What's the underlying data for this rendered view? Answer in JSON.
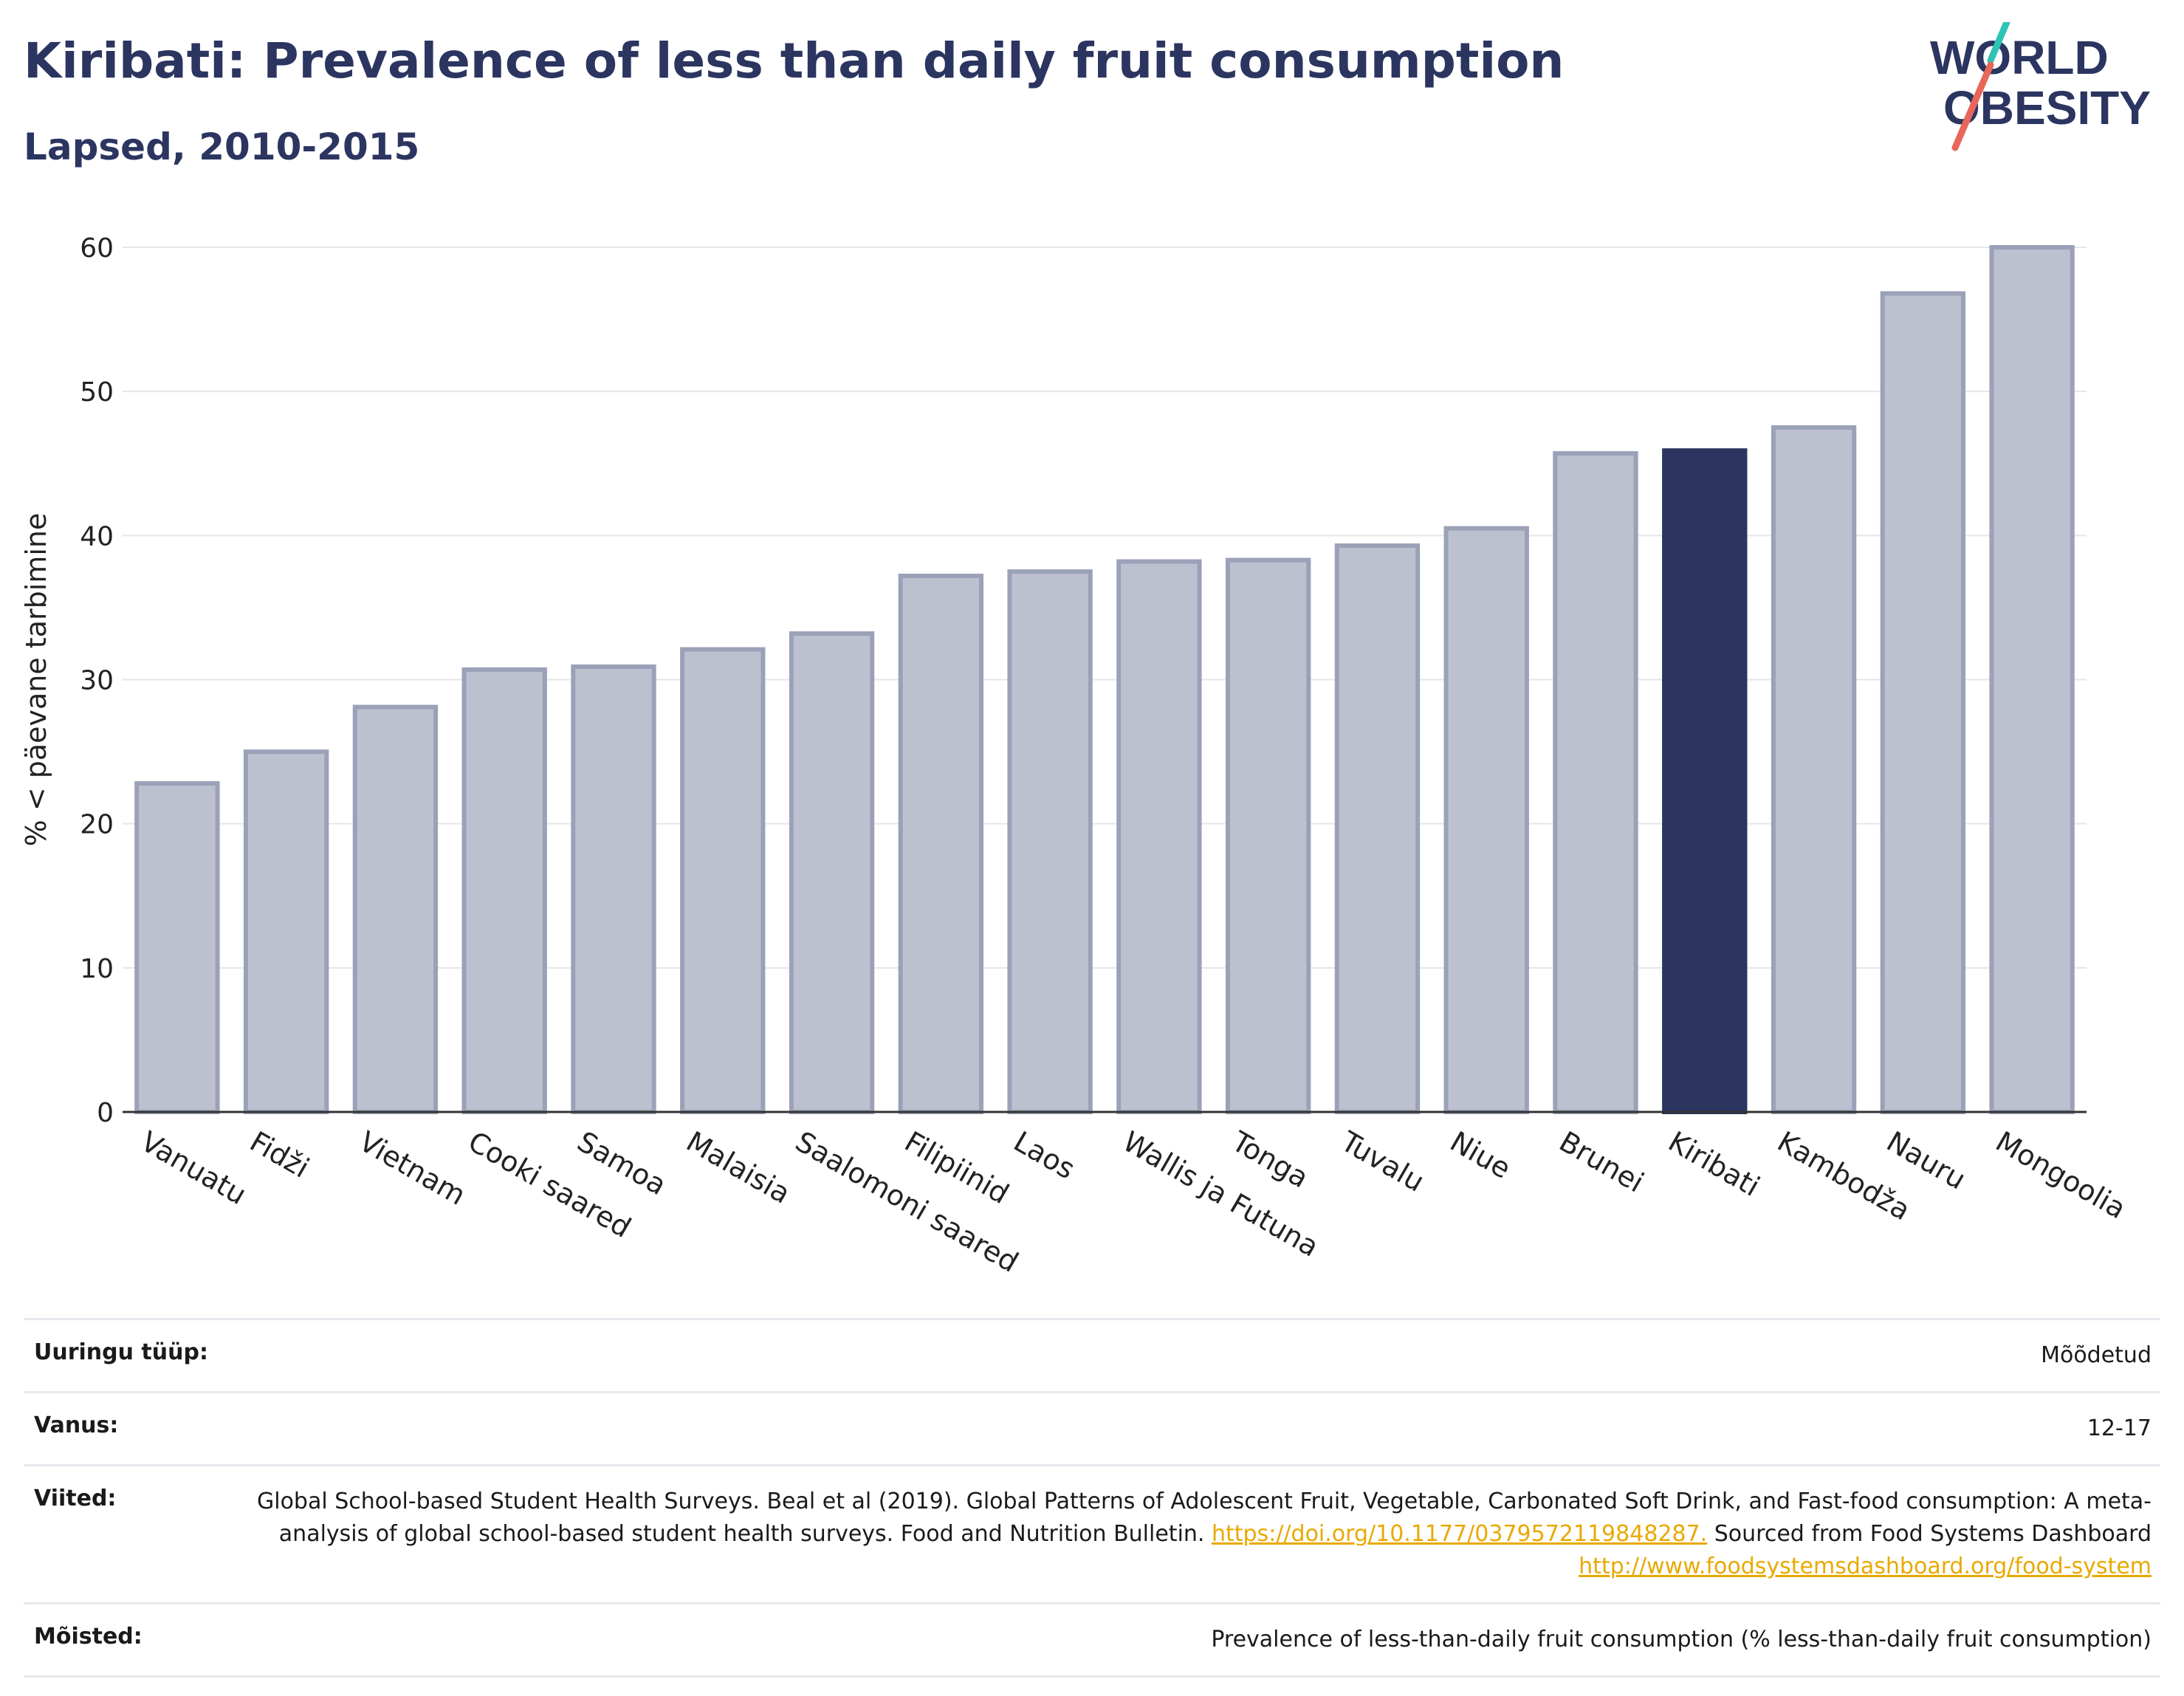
{
  "header": {
    "title": "Kiribati: Prevalence of less than daily fruit consumption",
    "subtitle": "Lapsed, 2010-2015"
  },
  "logo": {
    "line1": "WORLD",
    "line2": "OBESITY",
    "accent_colors": [
      "#2ec4b6",
      "#e8665a"
    ]
  },
  "colors": {
    "highlight": "#2b3560",
    "bar": "#bdc1cf",
    "bar_border": "#9aa1b8",
    "link": "#e8a900"
  },
  "chart_data": {
    "type": "bar",
    "title": "Kiribati: Prevalence of less than daily fruit consumption",
    "subtitle": "Lapsed, 2010-2015",
    "xlabel": "",
    "ylabel": "% < päevane tarbimine",
    "ylim": [
      0,
      60
    ],
    "yticks": [
      0,
      10,
      20,
      30,
      40,
      50,
      60
    ],
    "grid": true,
    "highlight": "Kiribati",
    "categories": [
      "Vanuatu",
      "Fidži",
      "Vietnam",
      "Cooki saared",
      "Samoa",
      "Malaisia",
      "Saalomoni saared",
      "Filipiinid",
      "Laos",
      "Wallis ja Futuna",
      "Tonga",
      "Tuvalu",
      "Niue",
      "Brunei",
      "Kiribati",
      "Kambodža",
      "Nauru",
      "Mongoolia"
    ],
    "values": [
      22.8,
      25.0,
      28.1,
      30.7,
      30.9,
      32.1,
      33.2,
      37.2,
      37.5,
      38.2,
      38.3,
      39.3,
      40.5,
      45.7,
      45.9,
      47.5,
      56.8,
      60.0
    ]
  },
  "meta": {
    "survey_type": {
      "label": "Uuringu tüüp:",
      "value": "Mõõdetud"
    },
    "age": {
      "label": "Vanus:",
      "value": "12-17"
    },
    "references": {
      "label": "Viited:",
      "text1": "Global School-based Student Health Surveys. Beal et al (2019). Global Patterns of Adolescent Fruit, Vegetable, Carbonated Soft Drink, and Fast-food consumption: A meta-analysis of global school-based student health surveys. Food and Nutrition Bulletin. ",
      "link1": "https://doi.org/10.1177/0379572119848287.",
      "text2": " Sourced from Food Systems Dashboard ",
      "link2": "http://www.foodsystemsdashboard.org/food-system"
    },
    "definitions": {
      "label": "Mõisted:",
      "value": "Prevalence of less-than-daily fruit consumption (% less-than-daily fruit consumption)"
    }
  }
}
